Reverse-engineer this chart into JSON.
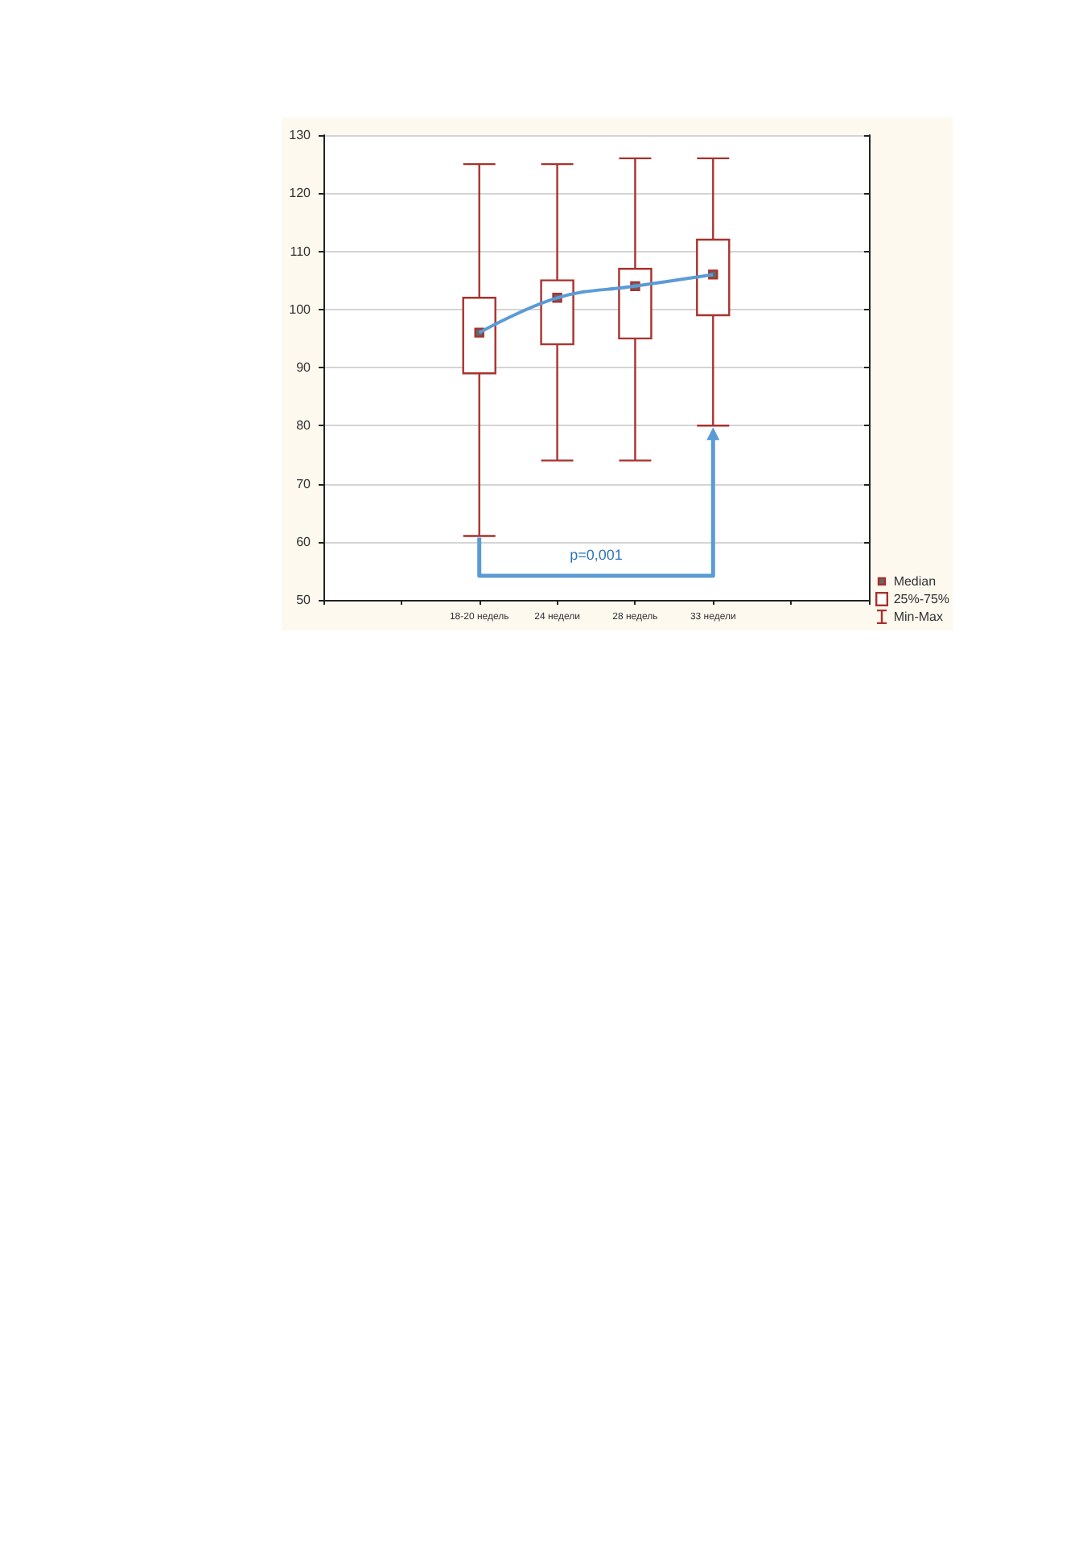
{
  "chart_data": {
    "type": "box",
    "categories": [
      null,
      null,
      "18-20 недель",
      "24 недели",
      "28 недель",
      "33 недели",
      null,
      null
    ],
    "ylim": [
      50,
      130
    ],
    "yticks": [
      50,
      60,
      70,
      80,
      90,
      100,
      110,
      120,
      130
    ],
    "grid": "y",
    "legend": "bottom right",
    "annotations": [
      "p=0,001",
      "Median",
      "Min-Max"
    ],
    "series": [
      {
        "name": "25%-75%",
        "color": "#a8322d",
        "boxes": [
          null,
          null,
          {
            "low": 61,
            "q1": 89,
            "median": 96,
            "q3": 102,
            "high": 125
          },
          {
            "low": 74,
            "q1": 94,
            "median": 102,
            "q3": 105,
            "high": 125
          },
          {
            "low": 74,
            "q1": 95,
            "median": 104,
            "q3": 107,
            "high": 126
          },
          {
            "low": 80,
            "q1": 99,
            "median": 106,
            "q3": 112,
            "high": 126
          },
          null,
          null
        ]
      },
      {
        "type": "line",
        "color": "#5b9bd5",
        "values": [
          null,
          null,
          96,
          102,
          104,
          106,
          null,
          null
        ]
      }
    ]
  }
}
